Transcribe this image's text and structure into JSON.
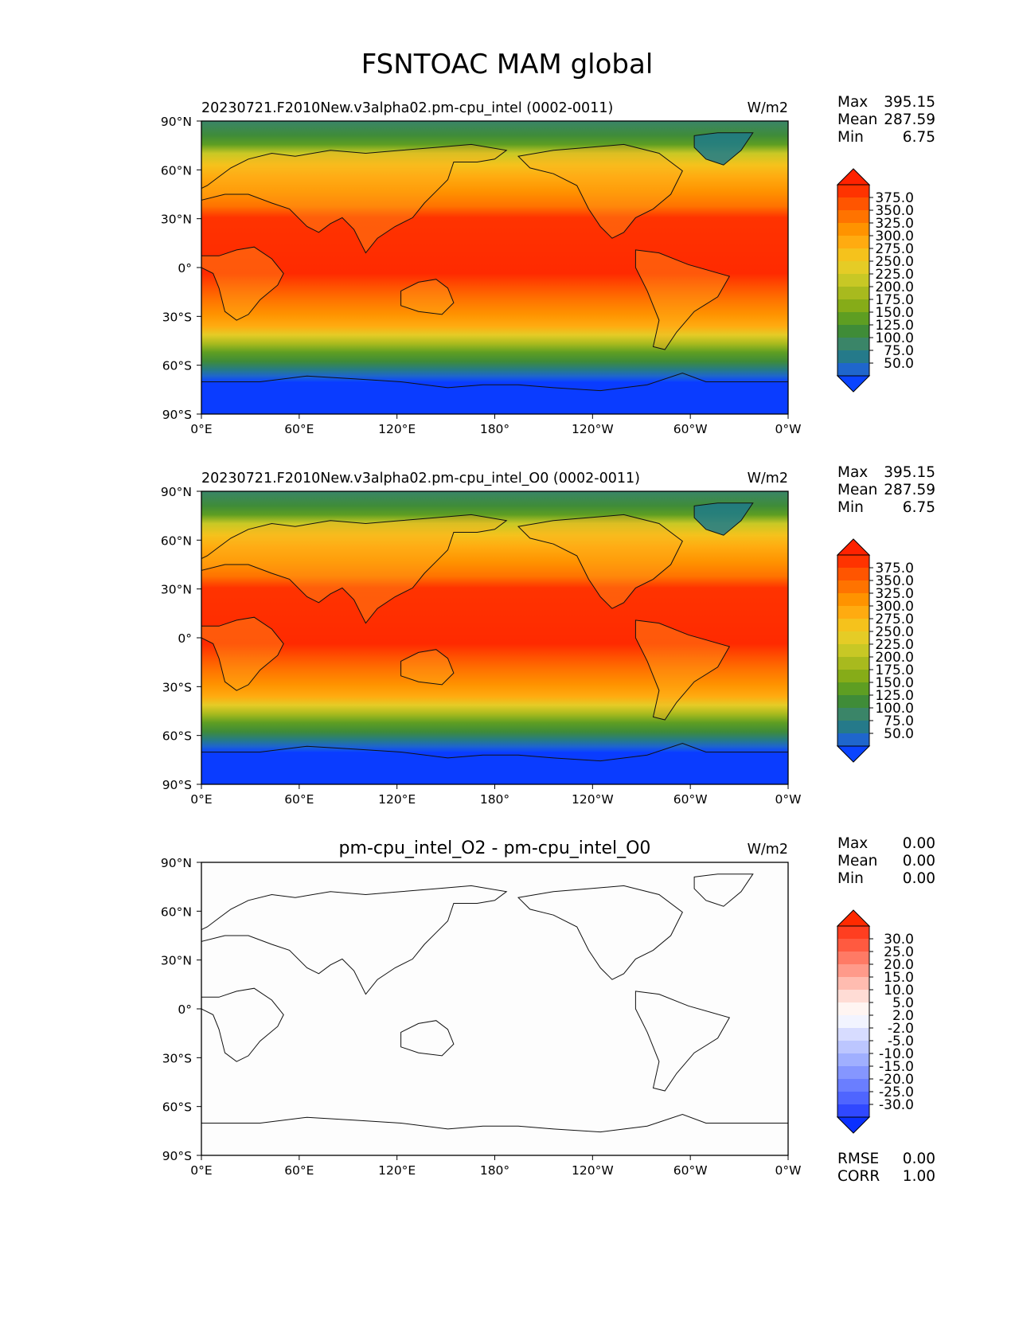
{
  "figure": {
    "title": "FSNTOAC MAM global"
  },
  "axes": {
    "lat_labels": [
      "90°N",
      "60°N",
      "30°N",
      "0°",
      "30°S",
      "60°S",
      "90°S"
    ],
    "lon_labels": [
      "0°E",
      "60°E",
      "120°E",
      "180°",
      "120°W",
      "60°W",
      "0°W"
    ]
  },
  "panels": [
    {
      "id": "test",
      "title": "20230721.F2010New.v3alpha02.pm-cpu_intel (0002-0011)",
      "units": "W/m2",
      "stats": [
        {
          "label": "Max",
          "value": "395.15"
        },
        {
          "label": "Mean",
          "value": "287.59"
        },
        {
          "label": "Min",
          "value": "6.75"
        }
      ],
      "colorbar_ticks": [
        "375.0",
        "350.0",
        "325.0",
        "300.0",
        "275.0",
        "250.0",
        "225.0",
        "200.0",
        "175.0",
        "150.0",
        "125.0",
        "100.0",
        "75.0",
        "50.0"
      ],
      "colorbar_colors": [
        "#ff2200",
        "#ff3300",
        "#ff5500",
        "#ff7300",
        "#ff9300",
        "#ffab10",
        "#f5c21c",
        "#e5cc26",
        "#c8c825",
        "#a8ba1e",
        "#86ac18",
        "#5e9e22",
        "#3f8c38",
        "#3a8568",
        "#257a8a",
        "#1f66cc",
        "#0a44ff"
      ]
    },
    {
      "id": "ref",
      "title": "20230721.F2010New.v3alpha02.pm-cpu_intel_O0 (0002-0011)",
      "units": "W/m2",
      "stats": [
        {
          "label": "Max",
          "value": "395.15"
        },
        {
          "label": "Mean",
          "value": "287.59"
        },
        {
          "label": "Min",
          "value": "6.75"
        }
      ],
      "colorbar_ticks": [
        "375.0",
        "350.0",
        "325.0",
        "300.0",
        "275.0",
        "250.0",
        "225.0",
        "200.0",
        "175.0",
        "150.0",
        "125.0",
        "100.0",
        "75.0",
        "50.0"
      ],
      "colorbar_colors": [
        "#ff2200",
        "#ff3300",
        "#ff5500",
        "#ff7300",
        "#ff9300",
        "#ffab10",
        "#f5c21c",
        "#e5cc26",
        "#c8c825",
        "#a8ba1e",
        "#86ac18",
        "#5e9e22",
        "#3f8c38",
        "#3a8568",
        "#257a8a",
        "#1f66cc",
        "#0a44ff"
      ]
    },
    {
      "id": "diff",
      "title": "pm-cpu_intel_O2 - pm-cpu_intel_O0",
      "units": "W/m2",
      "stats": [
        {
          "label": "Max",
          "value": "0.00"
        },
        {
          "label": "Mean",
          "value": "0.00"
        },
        {
          "label": "Min",
          "value": "0.00"
        }
      ],
      "colorbar_ticks": [
        "30.0",
        "25.0",
        "20.0",
        "15.0",
        "10.0",
        "5.0",
        "2.0",
        "-2.0",
        "-5.0",
        "-10.0",
        "-15.0",
        "-20.0",
        "-25.0",
        "-30.0"
      ],
      "colorbar_colors": [
        "#ff2a00",
        "#ff3e20",
        "#ff5a40",
        "#ff7a65",
        "#ff9a8a",
        "#ffbcb0",
        "#ffdcd5",
        "#fff5f2",
        "#f2f4ff",
        "#d7dcff",
        "#bcc6ff",
        "#a0afff",
        "#8596ff",
        "#6a7eff",
        "#4f65ff",
        "#3048ff",
        "#0a30ff"
      ],
      "extra_stats": [
        {
          "label": "RMSE",
          "value": "0.00"
        },
        {
          "label": "CORR",
          "value": "1.00"
        }
      ]
    }
  ],
  "chart_data": {
    "type": "heatmap",
    "title": "FSNTOAC MAM global",
    "variable": "FSNTOAC",
    "season": "MAM",
    "units": "W/m2",
    "projection": "cylindrical, central longitude 180",
    "lat_range": [
      -90,
      90
    ],
    "lon_range": [
      0,
      360
    ],
    "zonal_mean_estimate": {
      "lat": [
        -90,
        -80,
        -70,
        -60,
        -50,
        -40,
        -30,
        -20,
        -10,
        0,
        10,
        20,
        30,
        40,
        50,
        60,
        70,
        80,
        90
      ],
      "value": [
        10,
        25,
        45,
        110,
        185,
        250,
        310,
        345,
        370,
        375,
        370,
        350,
        320,
        275,
        230,
        185,
        140,
        110,
        100
      ]
    },
    "panels": [
      {
        "name": "test",
        "max": 395.15,
        "mean": 287.59,
        "min": 6.75,
        "levels": [
          50,
          75,
          100,
          125,
          150,
          175,
          200,
          225,
          250,
          275,
          300,
          325,
          350,
          375
        ]
      },
      {
        "name": "reference",
        "max": 395.15,
        "mean": 287.59,
        "min": 6.75,
        "levels": [
          50,
          75,
          100,
          125,
          150,
          175,
          200,
          225,
          250,
          275,
          300,
          325,
          350,
          375
        ]
      },
      {
        "name": "difference",
        "max": 0.0,
        "mean": 0.0,
        "min": 0.0,
        "rmse": 0.0,
        "corr": 1.0,
        "levels": [
          -30,
          -25,
          -20,
          -15,
          -10,
          -5,
          -2,
          2,
          5,
          10,
          15,
          20,
          25,
          30
        ]
      }
    ]
  }
}
